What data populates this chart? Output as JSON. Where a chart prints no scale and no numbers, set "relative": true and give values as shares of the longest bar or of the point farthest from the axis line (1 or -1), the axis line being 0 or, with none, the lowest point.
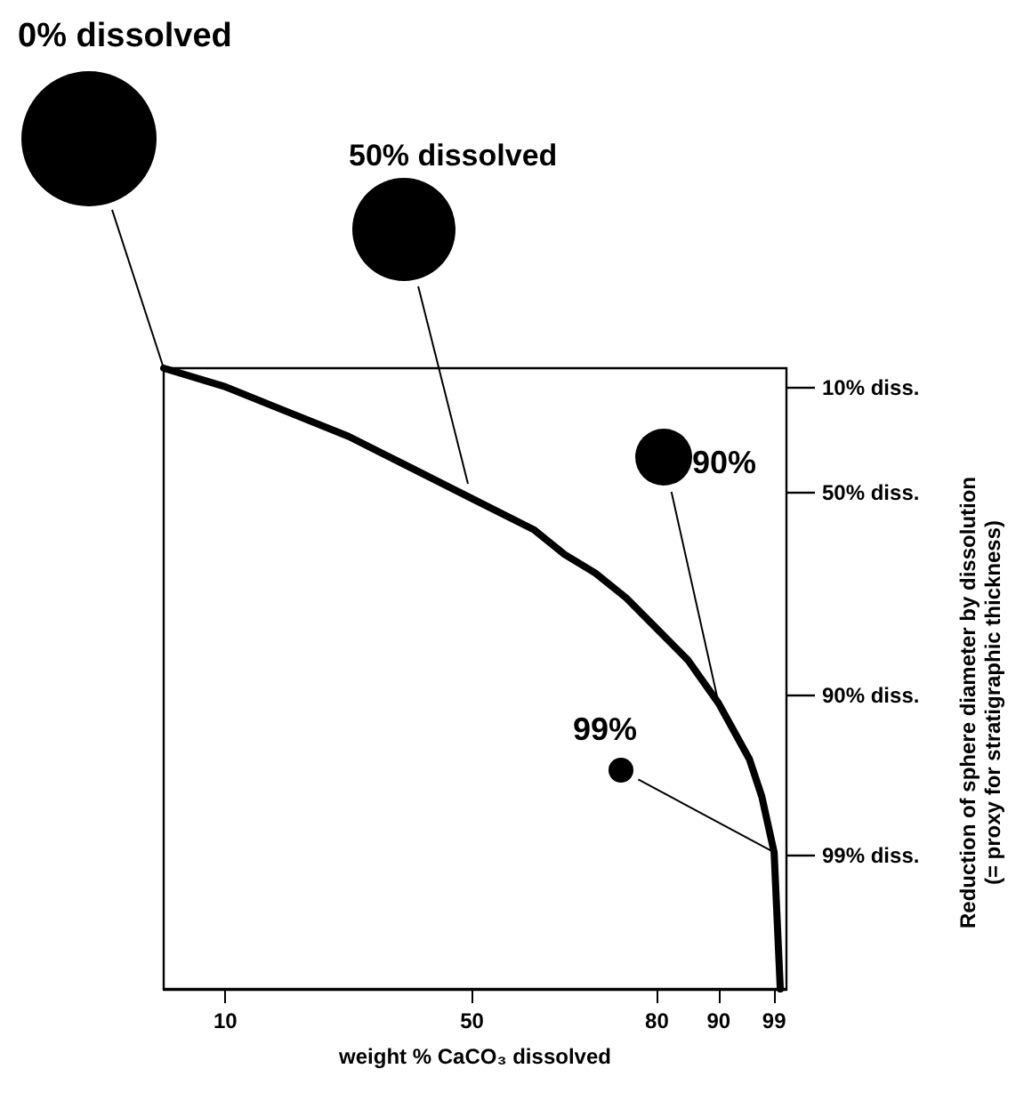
{
  "chart_data": {
    "type": "line",
    "xlabel": "weight % CaCO₃ dissolved",
    "x": [
      0,
      10,
      20,
      30,
      40,
      50,
      60,
      65,
      70,
      75,
      80,
      85,
      90,
      95,
      97,
      99,
      100
    ],
    "series": [
      {
        "color": "#000000",
        "values": [
          1,
          0.97,
          0.93,
          0.89,
          0.84,
          0.79,
          0.74,
          0.7,
          0.67,
          0.63,
          0.58,
          0.53,
          0.46,
          0.37,
          0.31,
          0.22,
          0
        ]
      }
    ],
    "relative": true,
    "xlim": [
      0,
      101
    ],
    "xticks": [
      10,
      50,
      80,
      90,
      99
    ],
    "annotations": [
      "0% dissolved",
      "50% dissolved",
      {
        "text": "90%",
        "x": 90,
        "y": 0.46
      },
      {
        "text": "99%",
        "x": 99,
        "y": 0.22
      },
      "10% diss.",
      "50% diss.",
      "90% diss.",
      "99% diss.",
      "Reduction of sphere diameter by dissolution\n(= proxy for stratigraphic thickness)"
    ],
    "grid": false,
    "marker": "none",
    "line_style": "solid"
  }
}
